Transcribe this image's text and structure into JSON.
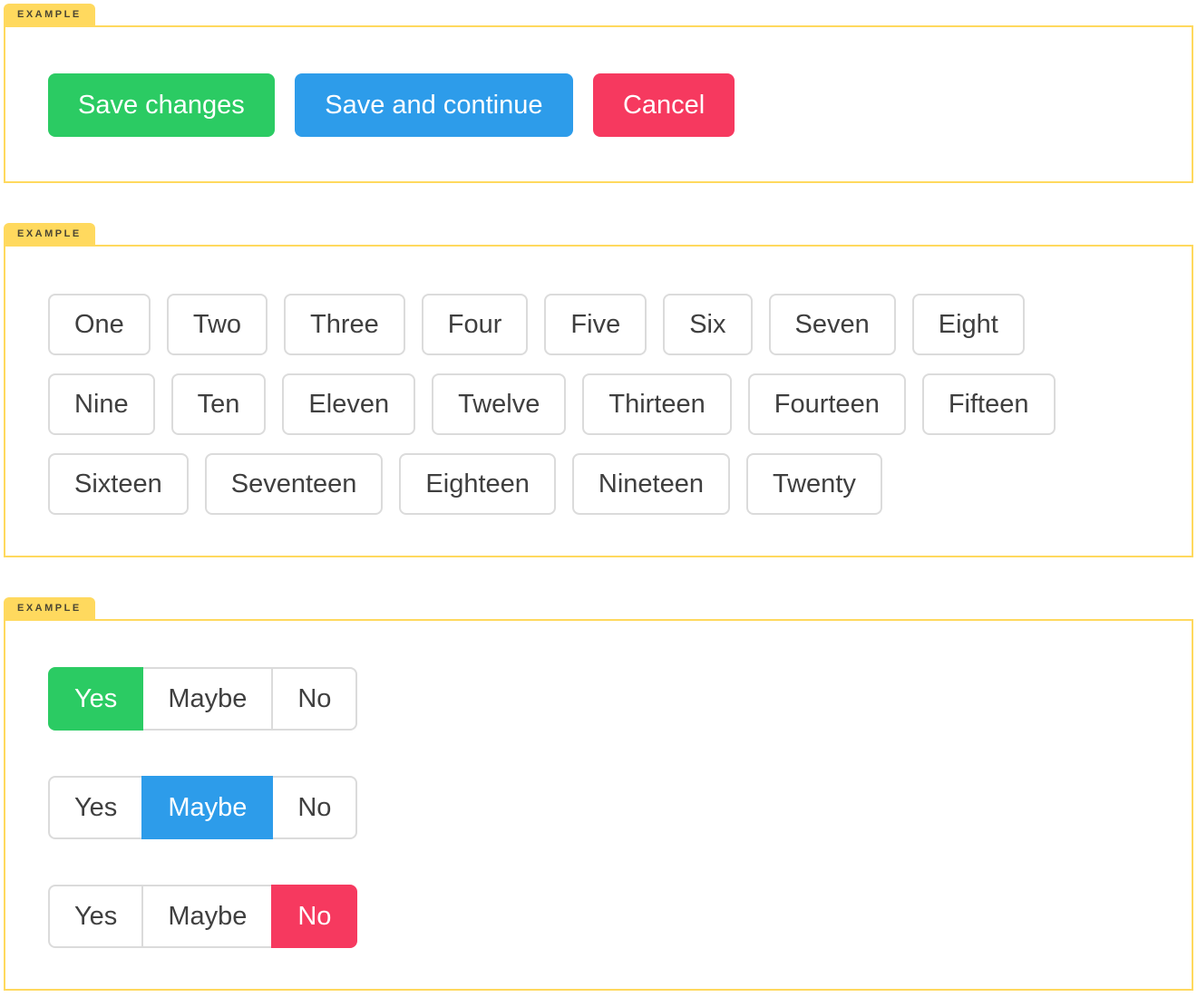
{
  "tag_label": "EXAMPLE",
  "colors": {
    "green": "#2BCB63",
    "blue": "#2D9CEA",
    "red": "#F6395F",
    "yellow": "#FFD95E",
    "outline_border": "#DBDBDB",
    "dark_text": "#3F3F3F",
    "tag_text": "#4A4533"
  },
  "sections": {
    "actions": {
      "buttons": [
        {
          "label": "Save changes",
          "variant": "green"
        },
        {
          "label": "Save and continue",
          "variant": "blue"
        },
        {
          "label": "Cancel",
          "variant": "red"
        }
      ]
    },
    "numbers": {
      "rows": [
        [
          "One",
          "Two",
          "Three",
          "Four",
          "Five",
          "Six",
          "Seven",
          "Eight"
        ],
        [
          "Nine",
          "Ten",
          "Eleven",
          "Twelve",
          "Thirteen",
          "Fourteen",
          "Fifteen"
        ],
        [
          "Sixteen",
          "Seventeen",
          "Eighteen",
          "Nineteen",
          "Twenty"
        ]
      ]
    },
    "segments": {
      "groups": [
        {
          "options": [
            "Yes",
            "Maybe",
            "No"
          ],
          "selected_label": "Yes",
          "selected_index": 0,
          "variant": "green"
        },
        {
          "options": [
            "Yes",
            "Maybe",
            "No"
          ],
          "selected_label": "Maybe",
          "selected_index": 1,
          "variant": "blue"
        },
        {
          "options": [
            "Yes",
            "Maybe",
            "No"
          ],
          "selected_label": "No",
          "selected_index": 2,
          "variant": "red"
        }
      ]
    }
  }
}
